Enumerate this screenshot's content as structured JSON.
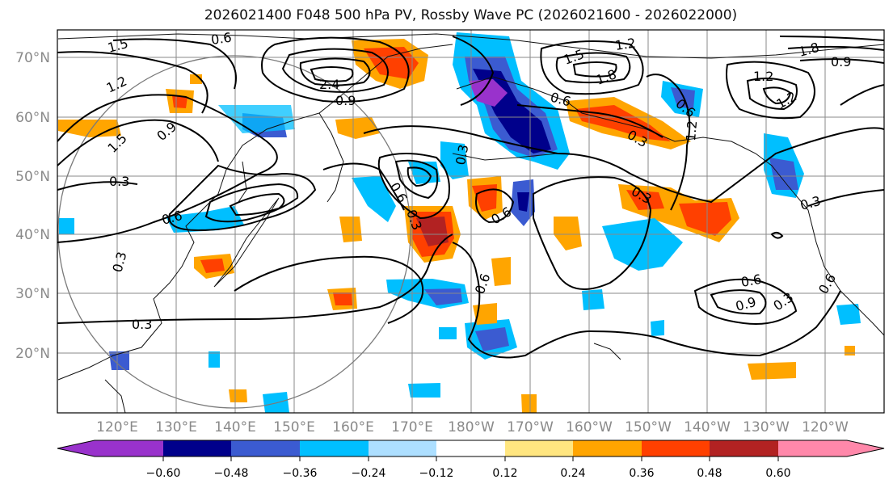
{
  "title": "2026021400 F048 500 hPa PV, Rossby Wave PC (2026021600 - 2026022000)",
  "axes": {
    "lat_labels": [
      "70°N",
      "60°N",
      "50°N",
      "40°N",
      "30°N",
      "20°N"
    ],
    "lon_labels": [
      "120°E",
      "130°E",
      "140°E",
      "150°E",
      "160°E",
      "170°E",
      "180°W",
      "170°W",
      "160°W",
      "150°W",
      "140°W",
      "130°W",
      "120°W"
    ]
  },
  "colorbar": {
    "levels": [
      "−0.60",
      "−0.48",
      "−0.36",
      "−0.24",
      "−0.12",
      "0.12",
      "0.24",
      "0.36",
      "0.48",
      "0.60"
    ],
    "colors": [
      "#9932CC",
      "#00008B",
      "#3B5BD1",
      "#00BFFF",
      "#ADDFFF",
      "#FFFFFF",
      "#FFE680",
      "#FFA500",
      "#FF4000",
      "#B22222",
      "#FF88AA"
    ]
  },
  "contour_labels": [
    "0.6",
    "1.5",
    "1.2",
    "0.9",
    "0.3",
    "2.4",
    "0.9",
    "1.5",
    "0.6",
    "0.3",
    "0.6",
    "0.3",
    "1.2",
    "1.5",
    "1.8",
    "0.6",
    "0.3",
    "1.2",
    "0.6",
    "1.2",
    "1.2",
    "1.8",
    "0.9",
    "0.3",
    "0.3",
    "0.6",
    "0.9",
    "0.3",
    "0.6",
    "0.3",
    "0.6",
    "0.6",
    "0.3"
  ]
}
